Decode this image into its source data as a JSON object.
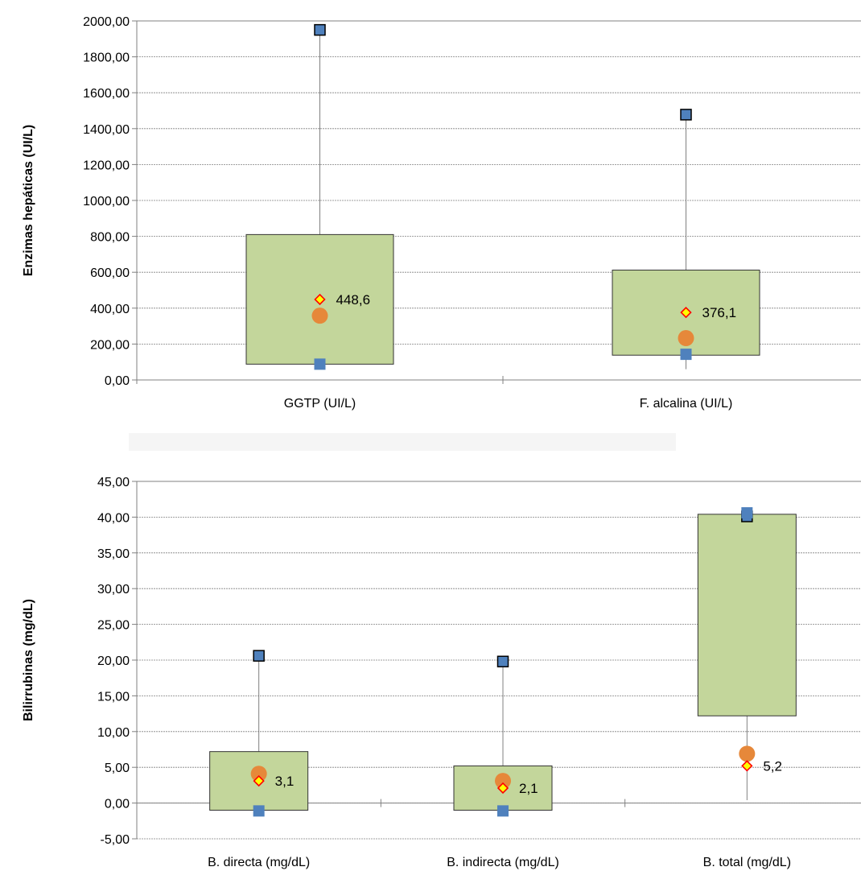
{
  "chart_data": [
    {
      "type": "box",
      "ylabel": "Enzimas hepáticas (UI/L)",
      "ylim": [
        0,
        2000
      ],
      "ystep": 200,
      "tick_labels": [
        "0,00",
        "200,00",
        "400,00",
        "600,00",
        "800,00",
        "1000,00",
        "1200,00",
        "1400,00",
        "1600,00",
        "1800,00",
        "2000,00"
      ],
      "grid": true,
      "categories": [
        "GGTP (UI/L)",
        "F. alcalina (UI/L)"
      ],
      "box_q1": [
        88,
        138
      ],
      "box_q3": [
        810,
        612
      ],
      "whisker_min": [
        88,
        60
      ],
      "whisker_max": [
        1950,
        1478
      ],
      "min_marker": [
        88,
        143
      ],
      "max_marker": [
        1950,
        1478
      ],
      "median": [
        358,
        233
      ],
      "mean": [
        448.6,
        376.1
      ],
      "mean_labels": [
        "448,6",
        "376,1"
      ],
      "colors": {
        "box": "#c3d69b",
        "square": "#4f81bd",
        "circle": "#e6883a",
        "diamond_fill": "#ffff00",
        "diamond_stroke": "#ff0000"
      }
    },
    {
      "type": "box",
      "ylabel": "Bilirrubinas (mg/dL)",
      "ylim": [
        -5,
        45
      ],
      "ystep": 5,
      "tick_labels": [
        "-5,00",
        "0,00",
        "5,00",
        "10,00",
        "15,00",
        "20,00",
        "25,00",
        "30,00",
        "35,00",
        "40,00",
        "45,00"
      ],
      "grid": true,
      "categories": [
        "B. directa (mg/dL)",
        "B. indirecta (mg/dL)",
        "B. total (mg/dL)"
      ],
      "box_q1": [
        -1,
        -1,
        12.2
      ],
      "box_q3": [
        7.2,
        5.2,
        40.4
      ],
      "whisker_min": [
        -1,
        -1,
        0.4
      ],
      "whisker_max": [
        20.6,
        19.8,
        40.4
      ],
      "min_marker": [
        -1.1,
        -1.1,
        40.6
      ],
      "max_marker": [
        20.6,
        19.8,
        40.1
      ],
      "median": [
        4.1,
        3.1,
        6.9
      ],
      "mean": [
        3.1,
        2.1,
        5.2
      ],
      "mean_labels": [
        "3,1",
        "2,1",
        "5,2"
      ],
      "colors": {
        "box": "#c3d69b",
        "square": "#4f81bd",
        "circle": "#e6883a",
        "diamond_fill": "#ffff00",
        "diamond_stroke": "#ff0000"
      }
    }
  ]
}
